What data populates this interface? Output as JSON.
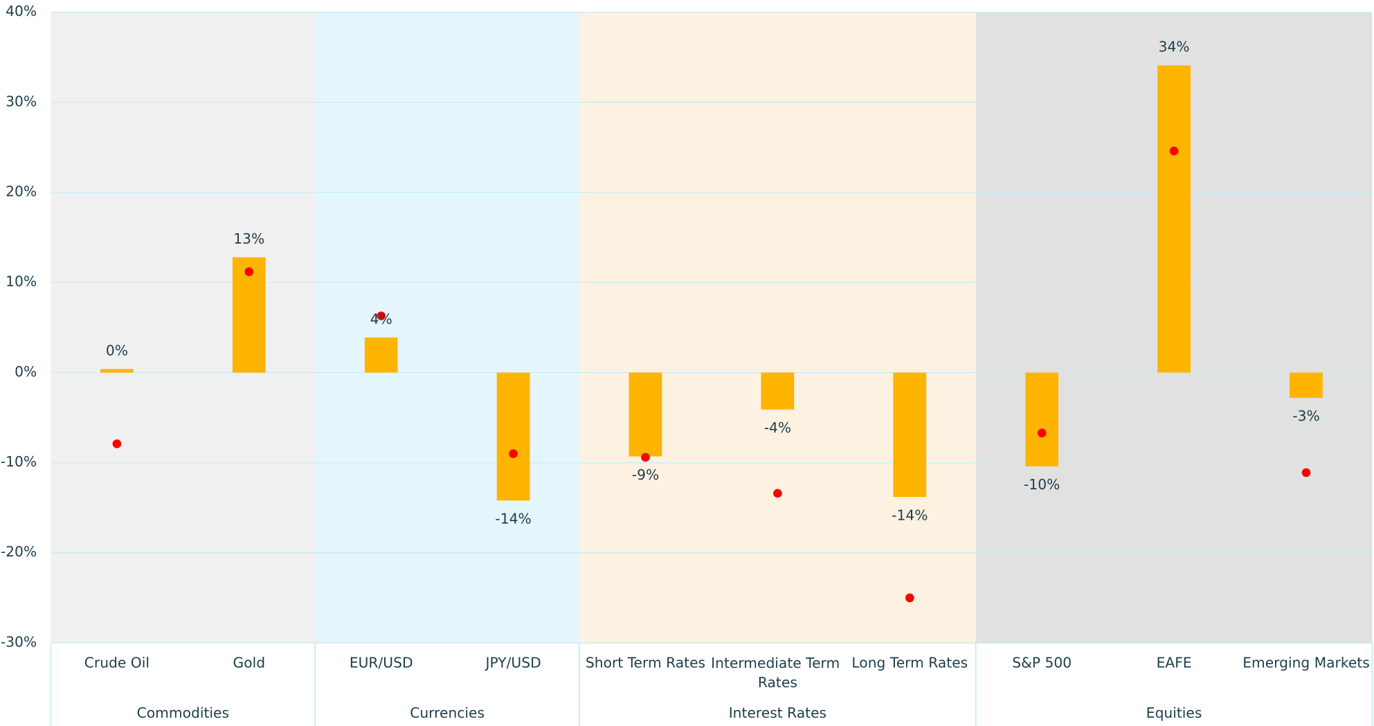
{
  "chart_data": {
    "type": "bar",
    "categories": [
      "Crude Oil",
      "Gold",
      "EUR/USD",
      "JPY/USD",
      "Short Term Rates",
      "Intermediate Term Rates",
      "Long Term Rates",
      "S&P 500",
      "EAFE",
      "Emerging Markets"
    ],
    "values": [
      0.4,
      12.8,
      3.9,
      -14.2,
      -9.3,
      -4.1,
      -13.8,
      -10.4,
      34.1,
      -2.8
    ],
    "value_labels": [
      "0%",
      "13%",
      "4%",
      "-14%",
      "-9%",
      "-4%",
      "-14%",
      "-10%",
      "34%",
      "-3%"
    ],
    "color": "#ffb400",
    "markers": {
      "values": [
        -7.9,
        11.2,
        6.3,
        -9.0,
        -9.4,
        -13.4,
        -25.0,
        -6.7,
        24.6,
        -11.1
      ],
      "color": "#ff0000"
    },
    "groups": [
      {
        "name": "Commodities",
        "count": 2,
        "color": "#f0f0f0"
      },
      {
        "name": "Currencies",
        "count": 2,
        "color": "#e4f6fc"
      },
      {
        "name": "Interest Rates",
        "count": 3,
        "color": "#fdf1e2"
      },
      {
        "name": "Equities",
        "count": 3,
        "color": "#e1e1e1"
      }
    ],
    "ylim": [
      -30,
      40
    ],
    "yticks": [
      {
        "value": -30,
        "label": "-30%"
      },
      {
        "value": -20,
        "label": "-20%"
      },
      {
        "value": -10,
        "label": "-10%"
      },
      {
        "value": 0,
        "label": "0%"
      },
      {
        "value": 10,
        "label": "10%"
      },
      {
        "value": 20,
        "label": "20%"
      },
      {
        "value": 30,
        "label": "30%"
      },
      {
        "value": 40,
        "label": "40%"
      }
    ],
    "grid": true
  }
}
